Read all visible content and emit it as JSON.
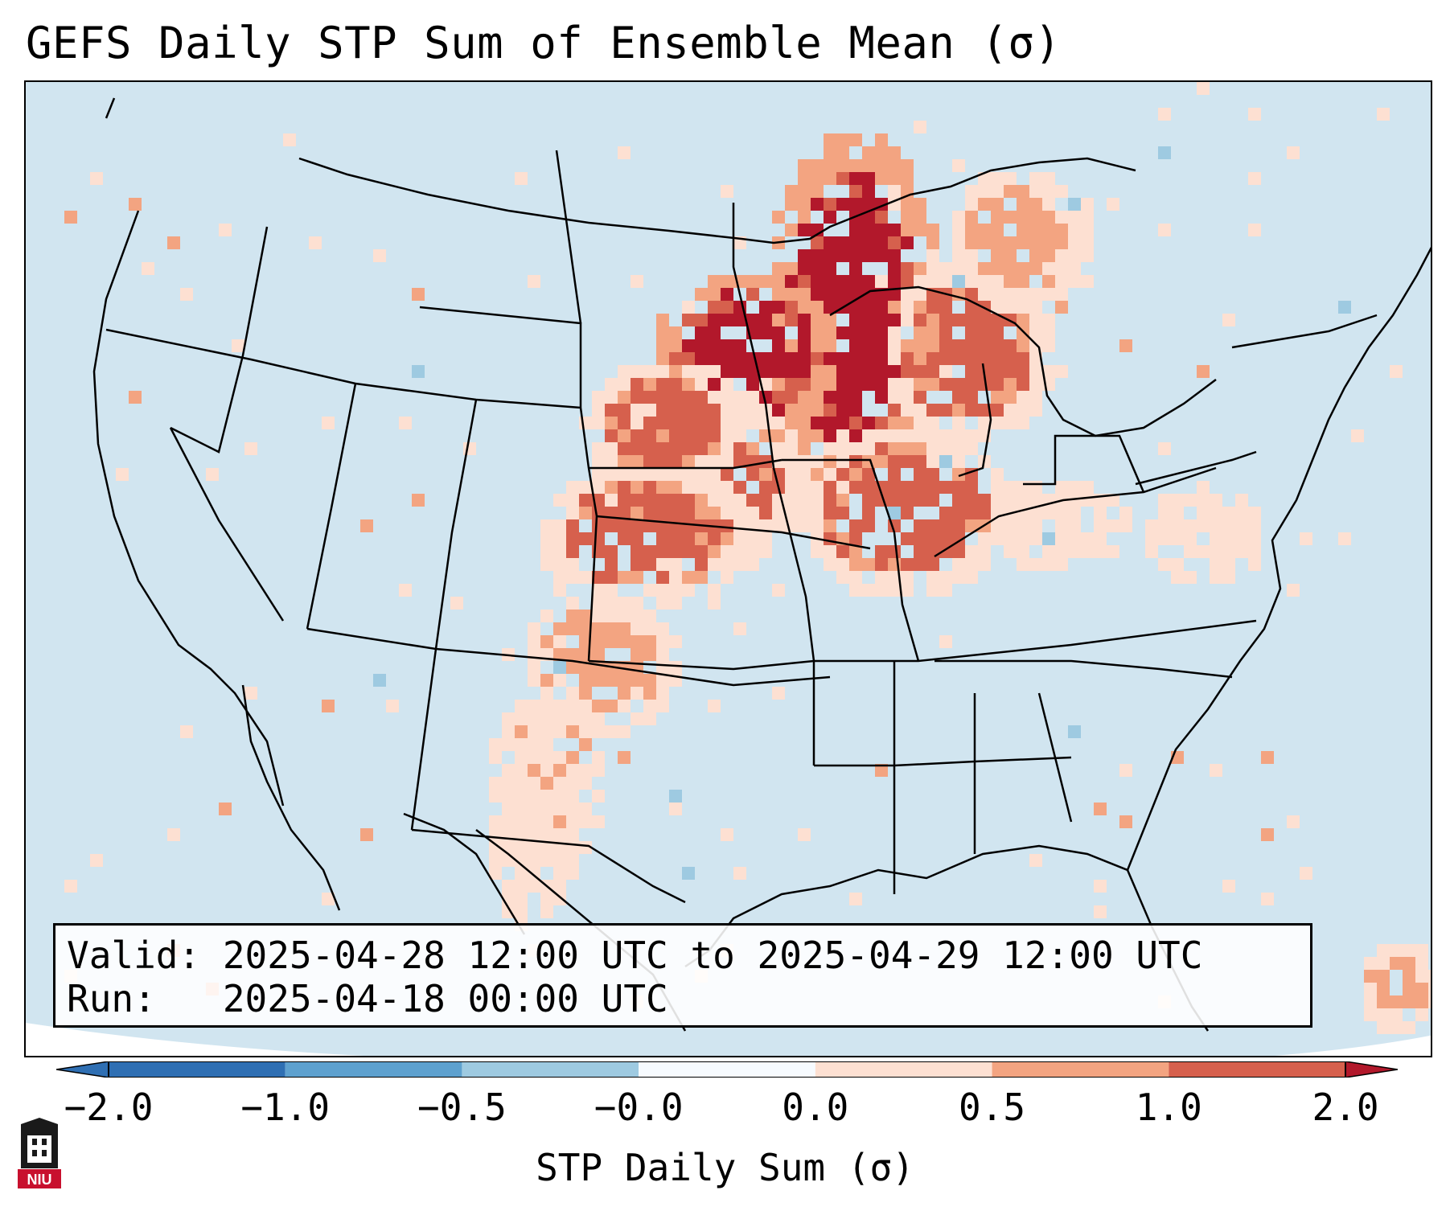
{
  "title": "GEFS Daily STP Sum of Ensemble Mean (σ)",
  "info": {
    "valid_line": "Valid: 2025-04-28 12:00 UTC to 2025-04-29 12:00 UTC",
    "run_line": "Run:   2025-04-18 00:00 UTC"
  },
  "colorbar": {
    "label": "STP Daily Sum (σ)",
    "ticks": [
      "−2.0",
      "−1.0",
      "−0.5",
      "−0.0",
      "0.0",
      "0.5",
      "1.0",
      "2.0"
    ],
    "colors": [
      "#2f6fb3",
      "#5ea1cf",
      "#9ecae1",
      "#f7fbff",
      "#fde0d2",
      "#f3a481",
      "#d6604d",
      "#b2182b"
    ],
    "background_color": "#d1e5f0"
  },
  "logo_text": "NIU",
  "colors": {
    "map_background": "#d1e5f0",
    "outline": "#000000"
  }
}
